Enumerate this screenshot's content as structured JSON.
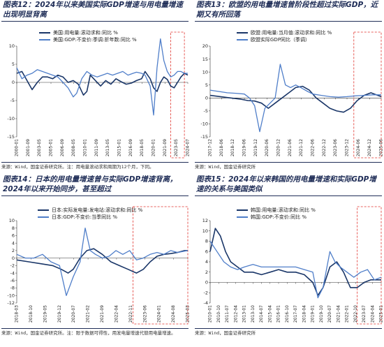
{
  "chart_data": [
    {
      "type": "line",
      "title": "图表12：2024年以来美国实际GDP增速与用电量增速出现明显背离",
      "source": "来源：Wind，国金证券研究所。注：用电量滚动求和周期为12个月，下同。",
      "ylim": [
        -15,
        10
      ],
      "yticks": [
        10,
        5,
        0,
        -5,
        -10,
        -15
      ],
      "xtick_labels": [
        "2000-01",
        "2001-09",
        "2003-05",
        "2005-01",
        "2006-09",
        "2008-05",
        "2010-01",
        "2011-09",
        "2013-05",
        "2015-01",
        "2016-09",
        "2018-05",
        "2020-01",
        "2021-09",
        "2023-05",
        "2024-07"
      ],
      "highlight_range": [
        0.9,
        0.98
      ],
      "series": [
        {
          "name": "美国:用电量:滚动求和:同比 %",
          "color": "#1a3668",
          "points": [
            [
              0,
              2.5
            ],
            [
              0.03,
              3
            ],
            [
              0.06,
              0.5
            ],
            [
              0.09,
              -2
            ],
            [
              0.12,
              0
            ],
            [
              0.15,
              1.5
            ],
            [
              0.18,
              1.5
            ],
            [
              0.21,
              1
            ],
            [
              0.24,
              2
            ],
            [
              0.27,
              1.5
            ],
            [
              0.3,
              0
            ],
            [
              0.33,
              0.5
            ],
            [
              0.36,
              -0.5
            ],
            [
              0.39,
              -3.5
            ],
            [
              0.41,
              -2.5
            ],
            [
              0.43,
              2
            ],
            [
              0.46,
              0.5
            ],
            [
              0.49,
              -1
            ],
            [
              0.52,
              0.5
            ],
            [
              0.55,
              -0.5
            ],
            [
              0.58,
              1
            ],
            [
              0.61,
              0.2
            ],
            [
              0.64,
              -0.5
            ],
            [
              0.67,
              -0.2
            ],
            [
              0.7,
              0.5
            ],
            [
              0.73,
              1
            ],
            [
              0.75,
              3
            ],
            [
              0.78,
              1
            ],
            [
              0.8,
              -1.5
            ],
            [
              0.82,
              -2.5
            ],
            [
              0.84,
              0
            ],
            [
              0.86,
              1.5
            ],
            [
              0.88,
              0.8
            ],
            [
              0.9,
              -1
            ],
            [
              0.92,
              -1.5
            ],
            [
              0.94,
              0
            ],
            [
              0.96,
              1.5
            ],
            [
              0.98,
              2.5
            ],
            [
              1,
              2
            ]
          ]
        },
        {
          "name": "美国:GDP:不变价:季调:折年数:同比 %",
          "color": "#4f7ec9",
          "points": [
            [
              0,
              4
            ],
            [
              0.03,
              1
            ],
            [
              0.06,
              2
            ],
            [
              0.09,
              2.5
            ],
            [
              0.12,
              3.5
            ],
            [
              0.15,
              3
            ],
            [
              0.18,
              2.5
            ],
            [
              0.21,
              2
            ],
            [
              0.24,
              1.5
            ],
            [
              0.27,
              0
            ],
            [
              0.3,
              -1.5
            ],
            [
              0.33,
              -4
            ],
            [
              0.35,
              -3
            ],
            [
              0.38,
              1
            ],
            [
              0.41,
              3
            ],
            [
              0.44,
              2
            ],
            [
              0.47,
              1.5
            ],
            [
              0.5,
              2
            ],
            [
              0.53,
              2.5
            ],
            [
              0.56,
              2
            ],
            [
              0.59,
              2.5
            ],
            [
              0.62,
              3
            ],
            [
              0.65,
              2
            ],
            [
              0.68,
              2.5
            ],
            [
              0.7,
              2.8
            ],
            [
              0.73,
              2.5
            ],
            [
              0.75,
              2
            ],
            [
              0.78,
              -1
            ],
            [
              0.8,
              -9
            ],
            [
              0.82,
              4
            ],
            [
              0.84,
              12
            ],
            [
              0.86,
              6
            ],
            [
              0.88,
              3
            ],
            [
              0.9,
              1.5
            ],
            [
              0.92,
              2
            ],
            [
              0.94,
              3
            ],
            [
              0.96,
              3
            ],
            [
              0.98,
              2.5
            ],
            [
              1,
              2.5
            ]
          ]
        }
      ]
    },
    {
      "type": "line",
      "title": "图表13：欧盟的用电量增速曾阶段性超过实际GDP，近期又有所回落",
      "source": "来源：Wind，国金证券研究所",
      "ylim": [
        -15,
        20
      ],
      "yticks": [
        20,
        15,
        10,
        5,
        0,
        -5,
        -10,
        -15
      ],
      "xtick_labels": [
        "2017-12",
        "2018-06",
        "2018-12",
        "2019-06",
        "2019-12",
        "2020-06",
        "2020-12",
        "2021-06",
        "2021-12",
        "2022-06",
        "2022-12",
        "2023-06",
        "2023-12",
        "2024-06",
        "2024-12",
        "2025-06"
      ],
      "highlight_range": [
        0.84,
        1.0
      ],
      "series": [
        {
          "name": "欧盟:用电量:当月值:滚动求和:同比 %",
          "color": "#1a3668",
          "points": [
            [
              0,
              1
            ],
            [
              0.06,
              0.5
            ],
            [
              0.12,
              0
            ],
            [
              0.18,
              -0.5
            ],
            [
              0.22,
              -1
            ],
            [
              0.26,
              -1.2
            ],
            [
              0.3,
              -2
            ],
            [
              0.34,
              -4
            ],
            [
              0.38,
              -2
            ],
            [
              0.42,
              0
            ],
            [
              0.46,
              2
            ],
            [
              0.5,
              4
            ],
            [
              0.54,
              4.5
            ],
            [
              0.58,
              3
            ],
            [
              0.62,
              0
            ],
            [
              0.66,
              -2
            ],
            [
              0.7,
              -4
            ],
            [
              0.74,
              -5
            ],
            [
              0.78,
              -5.5
            ],
            [
              0.82,
              -4
            ],
            [
              0.86,
              -1
            ],
            [
              0.9,
              1
            ],
            [
              0.94,
              2
            ],
            [
              0.98,
              1
            ],
            [
              1,
              0.5
            ]
          ]
        },
        {
          "name": "欧盟实际GDP同比（季调）",
          "color": "#4f7ec9",
          "points": [
            [
              0,
              3
            ],
            [
              0.05,
              2.5
            ],
            [
              0.1,
              2
            ],
            [
              0.15,
              1.8
            ],
            [
              0.2,
              1.5
            ],
            [
              0.23,
              0
            ],
            [
              0.26,
              -3
            ],
            [
              0.29,
              -13
            ],
            [
              0.32,
              -4
            ],
            [
              0.35,
              -2
            ],
            [
              0.38,
              0
            ],
            [
              0.41,
              13
            ],
            [
              0.44,
              5
            ],
            [
              0.47,
              4
            ],
            [
              0.5,
              5
            ],
            [
              0.53,
              4
            ],
            [
              0.57,
              2.5
            ],
            [
              0.6,
              1.5
            ],
            [
              0.65,
              1
            ],
            [
              0.7,
              0.5
            ],
            [
              0.75,
              0.3
            ],
            [
              0.8,
              0.5
            ],
            [
              0.85,
              0.8
            ],
            [
              0.9,
              1
            ],
            [
              0.95,
              1.2
            ],
            [
              1,
              1.2
            ]
          ]
        }
      ]
    },
    {
      "type": "line",
      "title": "图表14：日本的用电量增速曾与实际GDP增速背离，2024年以来开始同步，甚至超过",
      "source": "来源：Wind，国金证券研究所。注：限于数据可得性，用发电量增速代替用电量增速。",
      "ylim": [
        -12,
        10
      ],
      "yticks": [
        10,
        8,
        6,
        4,
        2,
        0,
        -2,
        -4,
        -6,
        -8,
        -10,
        -12
      ],
      "xtick_labels": [
        "2018-03",
        "2018-10",
        "2019-05",
        "2019-12",
        "2020-07",
        "2021-02",
        "2021-09",
        "2022-04",
        "2022-11",
        "2023-06",
        "2024-01",
        "2024-08",
        "2025-03"
      ],
      "highlight_range": [
        0.68,
        1.0
      ],
      "series": [
        {
          "name": "日本:实际发电量:发电站:滚动求和:同比 %",
          "color": "#1a3668",
          "points": [
            [
              0,
              -0.5
            ],
            [
              0.07,
              -1
            ],
            [
              0.14,
              -1.5
            ],
            [
              0.21,
              -2
            ],
            [
              0.26,
              -3
            ],
            [
              0.3,
              -4
            ],
            [
              0.33,
              -3
            ],
            [
              0.37,
              0
            ],
            [
              0.41,
              2
            ],
            [
              0.45,
              2.5
            ],
            [
              0.5,
              1
            ],
            [
              0.55,
              -1
            ],
            [
              0.6,
              -2
            ],
            [
              0.65,
              -3
            ],
            [
              0.7,
              -4
            ],
            [
              0.74,
              -3
            ],
            [
              0.78,
              -1
            ],
            [
              0.82,
              0.5
            ],
            [
              0.86,
              1
            ],
            [
              0.9,
              1.2
            ],
            [
              0.94,
              1.5
            ],
            [
              0.98,
              2
            ],
            [
              1,
              2
            ]
          ]
        },
        {
          "name": "日本:GDP:不变价:当季同比 %",
          "color": "#4f7ec9",
          "points": [
            [
              0,
              1
            ],
            [
              0.05,
              0
            ],
            [
              0.1,
              0
            ],
            [
              0.15,
              1
            ],
            [
              0.2,
              -1
            ],
            [
              0.25,
              -2
            ],
            [
              0.29,
              -10
            ],
            [
              0.33,
              -5
            ],
            [
              0.37,
              -1
            ],
            [
              0.4,
              8
            ],
            [
              0.43,
              2
            ],
            [
              0.46,
              1
            ],
            [
              0.5,
              0
            ],
            [
              0.54,
              0.5
            ],
            [
              0.58,
              2
            ],
            [
              0.62,
              1
            ],
            [
              0.66,
              2
            ],
            [
              0.7,
              -0.5
            ],
            [
              0.74,
              0
            ],
            [
              0.78,
              1
            ],
            [
              0.82,
              1.5
            ],
            [
              0.86,
              1
            ],
            [
              0.9,
              2
            ],
            [
              0.94,
              1.5
            ],
            [
              1,
              2
            ]
          ]
        }
      ]
    },
    {
      "type": "line",
      "title": "图表15：2024年以来韩国的用电量增速和实际GDP增速的关系与美国类似",
      "source": "来源：Wind，国金证券研究所",
      "ylim": [
        -4,
        12
      ],
      "yticks": [
        12,
        10,
        8,
        6,
        4,
        2,
        0,
        -2,
        -4
      ],
      "xtick_labels": [
        "2010-01",
        "2010-10",
        "2011-07",
        "2012-04",
        "2013-01",
        "2013-10",
        "2014-07",
        "2015-04",
        "2016-01",
        "2016-10",
        "2017-07",
        "2018-04",
        "2019-01",
        "2019-10",
        "2020-07",
        "2021-04",
        "2022-01",
        "2022-10",
        "2023-07",
        "2024-04",
        "2025-01"
      ],
      "highlight_range": [
        0.86,
        1.0
      ],
      "series": [
        {
          "name": "韩国:用电量:滚动求和:同比 %",
          "color": "#1a3668",
          "points": [
            [
              0,
              6
            ],
            [
              0.03,
              10.5
            ],
            [
              0.06,
              9
            ],
            [
              0.09,
              6
            ],
            [
              0.12,
              4
            ],
            [
              0.16,
              3
            ],
            [
              0.2,
              2
            ],
            [
              0.25,
              2
            ],
            [
              0.3,
              1.5
            ],
            [
              0.35,
              2
            ],
            [
              0.4,
              2.5
            ],
            [
              0.45,
              2
            ],
            [
              0.5,
              2
            ],
            [
              0.55,
              1.5
            ],
            [
              0.6,
              0
            ],
            [
              0.63,
              -2.5
            ],
            [
              0.66,
              -1
            ],
            [
              0.7,
              3
            ],
            [
              0.74,
              4
            ],
            [
              0.78,
              2
            ],
            [
              0.82,
              -1
            ],
            [
              0.86,
              -1
            ],
            [
              0.9,
              0
            ],
            [
              0.94,
              0.5
            ],
            [
              1,
              0.5
            ]
          ]
        },
        {
          "name": "韩国:GDP:不变价:同比 %",
          "color": "#4f7ec9",
          "points": [
            [
              0,
              8
            ],
            [
              0.04,
              6
            ],
            [
              0.08,
              4
            ],
            [
              0.12,
              3
            ],
            [
              0.16,
              2.5
            ],
            [
              0.2,
              3
            ],
            [
              0.25,
              3.5
            ],
            [
              0.3,
              3
            ],
            [
              0.35,
              3
            ],
            [
              0.4,
              3
            ],
            [
              0.45,
              3
            ],
            [
              0.5,
              3
            ],
            [
              0.55,
              2.5
            ],
            [
              0.6,
              2
            ],
            [
              0.63,
              -3
            ],
            [
              0.66,
              -1
            ],
            [
              0.7,
              6
            ],
            [
              0.73,
              4
            ],
            [
              0.76,
              3
            ],
            [
              0.8,
              2
            ],
            [
              0.84,
              1
            ],
            [
              0.88,
              2
            ],
            [
              0.92,
              2.5
            ],
            [
              0.96,
              0.5
            ],
            [
              1,
              1
            ]
          ]
        }
      ]
    }
  ]
}
